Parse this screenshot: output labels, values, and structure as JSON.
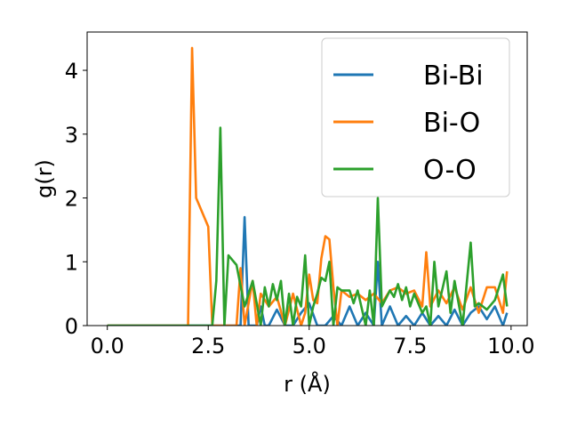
{
  "chart_data": {
    "type": "line",
    "title": "",
    "xlabel": "r (Å)",
    "ylabel": "g(r)",
    "xlim": [
      -0.5,
      10.4
    ],
    "ylim": [
      0,
      4.6
    ],
    "xticks": [
      0.0,
      2.5,
      5.0,
      7.5,
      10.0
    ],
    "xtick_labels": [
      "0.0",
      "2.5",
      "5.0",
      "7.5",
      "10.0"
    ],
    "yticks": [
      0,
      1,
      2,
      3,
      4
    ],
    "ytick_labels": [
      "0",
      "1",
      "2",
      "3",
      "4"
    ],
    "grid": false,
    "legend_position": "top-right",
    "series": [
      {
        "name": "Bi-Bi",
        "color": "#1f77b4",
        "x": [
          0.0,
          3.3,
          3.4,
          3.5,
          3.6,
          3.7,
          3.8,
          3.9,
          4.0,
          4.2,
          4.4,
          4.6,
          4.8,
          5.0,
          5.2,
          5.4,
          5.6,
          5.8,
          6.0,
          6.2,
          6.4,
          6.6,
          6.7,
          6.8,
          7.0,
          7.2,
          7.4,
          7.6,
          7.8,
          8.0,
          8.2,
          8.4,
          8.6,
          8.8,
          9.0,
          9.2,
          9.4,
          9.6,
          9.8,
          9.9
        ],
        "y": [
          0.0,
          0.0,
          1.7,
          0.0,
          0.0,
          0.0,
          0.3,
          0.0,
          0.0,
          0.25,
          0.0,
          0.0,
          0.2,
          0.35,
          0.0,
          0.0,
          0.15,
          0.0,
          0.3,
          0.0,
          0.2,
          0.0,
          1.0,
          0.0,
          0.3,
          0.0,
          0.15,
          0.0,
          0.2,
          0.0,
          0.15,
          0.0,
          0.25,
          0.0,
          0.2,
          0.3,
          0.1,
          0.3,
          0.0,
          0.2
        ]
      },
      {
        "name": "Bi-O",
        "color": "#ff7f0e",
        "x": [
          0.0,
          2.0,
          2.1,
          2.2,
          2.5,
          2.6,
          3.2,
          3.3,
          3.4,
          3.6,
          3.7,
          3.8,
          4.0,
          4.2,
          4.4,
          4.6,
          4.8,
          4.9,
          5.0,
          5.1,
          5.2,
          5.3,
          5.4,
          5.5,
          5.6,
          5.7,
          5.8,
          6.0,
          6.2,
          6.4,
          6.6,
          6.8,
          7.0,
          7.2,
          7.4,
          7.6,
          7.8,
          7.9,
          8.0,
          8.2,
          8.4,
          8.6,
          8.8,
          9.0,
          9.2,
          9.4,
          9.6,
          9.8,
          9.9
        ],
        "y": [
          0.0,
          0.0,
          4.35,
          2.0,
          1.55,
          0.0,
          0.0,
          0.9,
          0.0,
          0.7,
          0.0,
          0.5,
          0.3,
          0.45,
          0.0,
          0.5,
          0.0,
          0.2,
          0.8,
          0.4,
          0.35,
          1.05,
          1.4,
          1.35,
          0.6,
          0.0,
          0.55,
          0.45,
          0.5,
          0.4,
          0.5,
          0.35,
          0.55,
          0.6,
          0.5,
          0.55,
          0.3,
          1.15,
          0.3,
          0.55,
          0.35,
          0.6,
          0.25,
          0.6,
          0.2,
          0.6,
          0.6,
          0.2,
          0.85
        ]
      },
      {
        "name": "O-O",
        "color": "#2ca02c",
        "x": [
          0.0,
          2.6,
          2.7,
          2.8,
          2.9,
          3.0,
          3.2,
          3.4,
          3.6,
          3.8,
          3.9,
          4.0,
          4.1,
          4.2,
          4.3,
          4.4,
          4.5,
          4.6,
          4.7,
          4.8,
          4.9,
          5.0,
          5.1,
          5.2,
          5.3,
          5.4,
          5.5,
          5.6,
          5.7,
          5.8,
          6.0,
          6.1,
          6.2,
          6.4,
          6.5,
          6.6,
          6.7,
          6.8,
          7.0,
          7.1,
          7.2,
          7.3,
          7.4,
          7.5,
          7.6,
          7.8,
          7.9,
          8.0,
          8.1,
          8.2,
          8.4,
          8.5,
          8.6,
          8.8,
          9.0,
          9.1,
          9.2,
          9.4,
          9.6,
          9.8,
          9.9
        ],
        "y": [
          0.0,
          0.0,
          0.7,
          3.1,
          0.0,
          1.1,
          0.95,
          0.3,
          0.7,
          0.0,
          0.6,
          0.3,
          0.65,
          0.4,
          0.7,
          0.0,
          0.5,
          0.0,
          0.45,
          0.3,
          1.1,
          0.0,
          0.3,
          0.5,
          0.75,
          0.7,
          1.0,
          0.0,
          0.6,
          0.55,
          0.55,
          0.35,
          0.55,
          0.0,
          0.55,
          0.0,
          2.0,
          0.3,
          0.55,
          0.45,
          0.65,
          0.4,
          0.6,
          0.3,
          0.5,
          0.2,
          0.3,
          0.0,
          1.0,
          0.3,
          0.85,
          0.2,
          0.7,
          0.0,
          1.3,
          0.3,
          0.35,
          0.25,
          0.4,
          0.8,
          0.3
        ]
      }
    ]
  }
}
